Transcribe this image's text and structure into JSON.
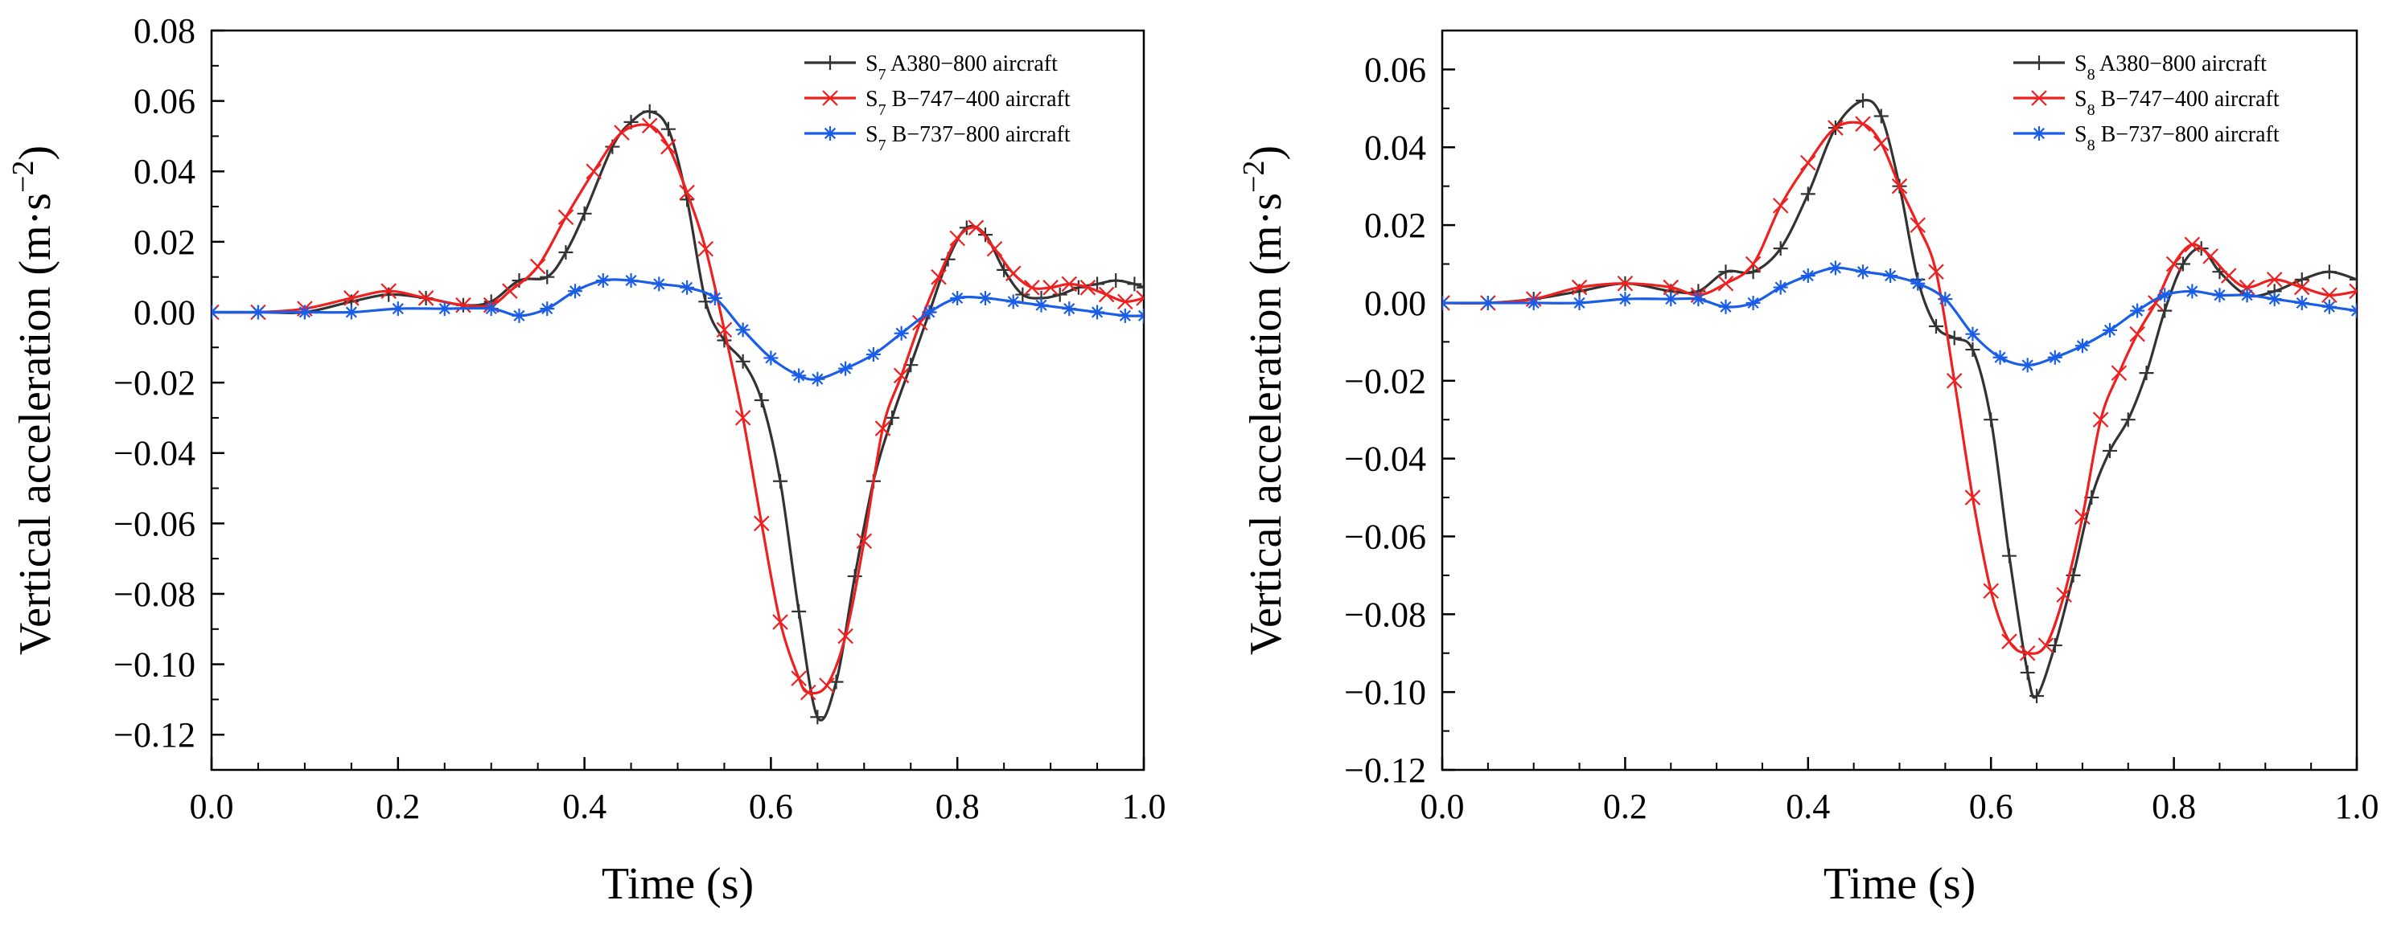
{
  "chart_data": [
    {
      "type": "line",
      "title": "",
      "xlabel": "Time (s)",
      "ylabel_main": "Vertical acceleration (m·s",
      "ylabel_exp": "−2",
      "ylabel_close": ")",
      "xlim": [
        0.0,
        1.0
      ],
      "ylim": [
        -0.13,
        0.08
      ],
      "xticks": [
        0.0,
        0.2,
        0.4,
        0.6,
        0.8,
        1.0
      ],
      "xtick_labels": [
        "0.0",
        "0.2",
        "0.4",
        "0.6",
        "0.8",
        "1.0"
      ],
      "yticks": [
        -0.12,
        -0.1,
        -0.08,
        -0.06,
        -0.04,
        -0.02,
        0.0,
        0.02,
        0.04,
        0.06,
        0.08
      ],
      "ytick_labels": [
        "−0.12",
        "−0.10",
        "−0.08",
        "−0.06",
        "−0.04",
        "−0.02",
        "0.00",
        "0.02",
        "0.04",
        "0.06",
        "0.08"
      ],
      "grid": false,
      "legend_position": "top-right",
      "series": [
        {
          "name_prefix": "S",
          "name_sub": "7",
          "name_rest": " A380−800  aircraft",
          "color": "#333333",
          "marker": "plus",
          "x": [
            0.0,
            0.05,
            0.1,
            0.15,
            0.19,
            0.23,
            0.27,
            0.3,
            0.33,
            0.36,
            0.38,
            0.4,
            0.43,
            0.45,
            0.47,
            0.49,
            0.51,
            0.53,
            0.55,
            0.57,
            0.59,
            0.61,
            0.63,
            0.65,
            0.67,
            0.69,
            0.71,
            0.73,
            0.75,
            0.77,
            0.79,
            0.81,
            0.83,
            0.85,
            0.87,
            0.89,
            0.91,
            0.93,
            0.95,
            0.97,
            0.99,
            1.0
          ],
          "y": [
            0.0,
            0.0,
            0.0,
            0.003,
            0.005,
            0.004,
            0.002,
            0.003,
            0.009,
            0.01,
            0.017,
            0.028,
            0.047,
            0.054,
            0.057,
            0.052,
            0.032,
            0.003,
            -0.008,
            -0.014,
            -0.025,
            -0.048,
            -0.085,
            -0.115,
            -0.105,
            -0.075,
            -0.048,
            -0.03,
            -0.015,
            0.0,
            0.015,
            0.024,
            0.022,
            0.012,
            0.005,
            0.004,
            0.005,
            0.007,
            0.008,
            0.009,
            0.008,
            0.007
          ]
        },
        {
          "name_prefix": "S",
          "name_sub": "7",
          "name_rest": " B−747−400 aircraft",
          "color": "#ee2020",
          "marker": "x",
          "x": [
            0.0,
            0.05,
            0.1,
            0.15,
            0.19,
            0.23,
            0.27,
            0.3,
            0.32,
            0.35,
            0.38,
            0.41,
            0.44,
            0.47,
            0.49,
            0.51,
            0.53,
            0.55,
            0.57,
            0.59,
            0.61,
            0.63,
            0.64,
            0.66,
            0.68,
            0.7,
            0.72,
            0.74,
            0.76,
            0.78,
            0.8,
            0.82,
            0.84,
            0.86,
            0.88,
            0.9,
            0.92,
            0.94,
            0.96,
            0.98,
            1.0
          ],
          "y": [
            0.0,
            0.0,
            0.001,
            0.004,
            0.006,
            0.004,
            0.002,
            0.002,
            0.006,
            0.013,
            0.027,
            0.04,
            0.051,
            0.053,
            0.047,
            0.034,
            0.018,
            -0.005,
            -0.03,
            -0.06,
            -0.088,
            -0.104,
            -0.108,
            -0.106,
            -0.092,
            -0.065,
            -0.033,
            -0.018,
            -0.003,
            0.01,
            0.021,
            0.024,
            0.018,
            0.011,
            0.007,
            0.007,
            0.008,
            0.007,
            0.005,
            0.003,
            0.004
          ]
        },
        {
          "name_prefix": "S",
          "name_sub": "7",
          "name_rest": " B−737−800 aircraft",
          "color": "#1a5ee8",
          "marker": "asterisk",
          "x": [
            0.0,
            0.05,
            0.1,
            0.15,
            0.2,
            0.25,
            0.3,
            0.33,
            0.36,
            0.39,
            0.42,
            0.45,
            0.48,
            0.51,
            0.54,
            0.57,
            0.6,
            0.63,
            0.65,
            0.68,
            0.71,
            0.74,
            0.77,
            0.8,
            0.83,
            0.86,
            0.89,
            0.92,
            0.95,
            0.98,
            1.0
          ],
          "y": [
            0.0,
            0.0,
            0.0,
            0.0,
            0.001,
            0.001,
            0.001,
            -0.001,
            0.001,
            0.006,
            0.009,
            0.009,
            0.008,
            0.007,
            0.004,
            -0.005,
            -0.013,
            -0.018,
            -0.019,
            -0.016,
            -0.012,
            -0.006,
            0.0,
            0.004,
            0.004,
            0.003,
            0.002,
            0.001,
            0.0,
            -0.001,
            -0.001
          ]
        }
      ]
    },
    {
      "type": "line",
      "title": "",
      "xlabel": "Time (s)",
      "ylabel_main": "Vertical acceleration (m·s",
      "ylabel_exp": "−2",
      "ylabel_close": ")",
      "xlim": [
        0.0,
        1.0
      ],
      "ylim": [
        -0.12,
        0.07
      ],
      "xticks": [
        0.0,
        0.2,
        0.4,
        0.6,
        0.8,
        1.0
      ],
      "xtick_labels": [
        "0.0",
        "0.2",
        "0.4",
        "0.6",
        "0.8",
        "1.0"
      ],
      "yticks": [
        -0.12,
        -0.1,
        -0.08,
        -0.06,
        -0.04,
        -0.02,
        0.0,
        0.02,
        0.04,
        0.06
      ],
      "ytick_labels": [
        "−0.12",
        "−0.10",
        "−0.08",
        "−0.06",
        "−0.04",
        "−0.02",
        "0.00",
        "0.02",
        "0.04",
        "0.06"
      ],
      "grid": false,
      "legend_position": "top-right",
      "series": [
        {
          "name_prefix": "S",
          "name_sub": "8",
          "name_rest": " A380−800  aircraft",
          "color": "#333333",
          "marker": "plus",
          "x": [
            0.0,
            0.05,
            0.1,
            0.15,
            0.2,
            0.25,
            0.28,
            0.31,
            0.34,
            0.37,
            0.4,
            0.43,
            0.46,
            0.48,
            0.5,
            0.52,
            0.54,
            0.56,
            0.58,
            0.6,
            0.62,
            0.64,
            0.65,
            0.67,
            0.69,
            0.71,
            0.73,
            0.75,
            0.77,
            0.79,
            0.81,
            0.83,
            0.85,
            0.88,
            0.91,
            0.94,
            0.97,
            1.0
          ],
          "y": [
            0.0,
            0.0,
            0.001,
            0.003,
            0.005,
            0.003,
            0.003,
            0.008,
            0.008,
            0.014,
            0.028,
            0.045,
            0.052,
            0.048,
            0.03,
            0.006,
            -0.006,
            -0.009,
            -0.012,
            -0.03,
            -0.065,
            -0.095,
            -0.101,
            -0.088,
            -0.07,
            -0.05,
            -0.038,
            -0.03,
            -0.018,
            -0.002,
            0.01,
            0.014,
            0.008,
            0.002,
            0.003,
            0.006,
            0.008,
            0.006
          ]
        },
        {
          "name_prefix": "S",
          "name_sub": "8",
          "name_rest": " B−747−400 aircraft",
          "color": "#ee2020",
          "marker": "x",
          "x": [
            0.0,
            0.05,
            0.1,
            0.15,
            0.2,
            0.25,
            0.28,
            0.31,
            0.34,
            0.37,
            0.4,
            0.43,
            0.46,
            0.48,
            0.5,
            0.52,
            0.54,
            0.56,
            0.58,
            0.6,
            0.62,
            0.64,
            0.66,
            0.68,
            0.7,
            0.72,
            0.74,
            0.76,
            0.78,
            0.8,
            0.82,
            0.84,
            0.86,
            0.88,
            0.91,
            0.94,
            0.97,
            1.0
          ],
          "y": [
            0.0,
            0.0,
            0.001,
            0.004,
            0.005,
            0.004,
            0.002,
            0.005,
            0.01,
            0.025,
            0.036,
            0.045,
            0.046,
            0.041,
            0.03,
            0.02,
            0.008,
            -0.02,
            -0.05,
            -0.074,
            -0.087,
            -0.09,
            -0.088,
            -0.075,
            -0.055,
            -0.03,
            -0.018,
            -0.008,
            0.0,
            0.01,
            0.015,
            0.012,
            0.007,
            0.004,
            0.006,
            0.004,
            0.002,
            0.003
          ]
        },
        {
          "name_prefix": "S",
          "name_sub": "8",
          "name_rest": " B−737−800 aircraft",
          "color": "#1a5ee8",
          "marker": "asterisk",
          "x": [
            0.0,
            0.05,
            0.1,
            0.15,
            0.2,
            0.25,
            0.28,
            0.31,
            0.34,
            0.37,
            0.4,
            0.43,
            0.46,
            0.49,
            0.52,
            0.55,
            0.58,
            0.61,
            0.64,
            0.67,
            0.7,
            0.73,
            0.76,
            0.79,
            0.82,
            0.85,
            0.88,
            0.91,
            0.94,
            0.97,
            1.0
          ],
          "y": [
            0.0,
            0.0,
            0.0,
            0.0,
            0.001,
            0.001,
            0.001,
            -0.001,
            0.0,
            0.004,
            0.007,
            0.009,
            0.008,
            0.007,
            0.005,
            0.001,
            -0.008,
            -0.014,
            -0.016,
            -0.014,
            -0.011,
            -0.007,
            -0.002,
            0.002,
            0.003,
            0.002,
            0.002,
            0.001,
            0.0,
            -0.001,
            -0.002
          ]
        }
      ]
    }
  ]
}
